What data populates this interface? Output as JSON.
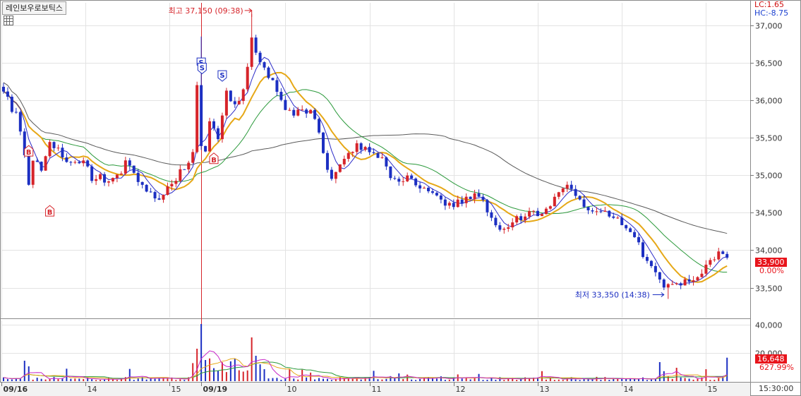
{
  "header": {
    "instrument": "레인보우로보틱스",
    "lc_label": "LC:1.65",
    "hc_label": "HC:-8.75"
  },
  "price_tag": {
    "value": "33,900",
    "change": "0.00%"
  },
  "volume_tag": {
    "value": "16,648",
    "change": "627.99%"
  },
  "footer": {
    "time": "15:30:00"
  },
  "annotations": {
    "high": "최고 37,150 (09:38)",
    "low": "최저 33,350 (14:38)",
    "signals": [
      "B",
      "B",
      "B",
      "S",
      "S",
      "S"
    ]
  },
  "colors": {
    "up": "#d6242a",
    "down": "#1c2fc2",
    "ma5": "#2c2cc8",
    "ma10": "#e6a817",
    "ma20": "#2c9a3c",
    "ma60": "#5a5a5a",
    "vol_ma5": "#c828c8",
    "vol_ma10": "#e6a817",
    "vol_ma20": "#2c9a3c",
    "tag": "#e8141b"
  },
  "chart_data": {
    "type": "candlestick",
    "price_axis": {
      "ticks": [
        33500,
        34000,
        34500,
        35000,
        35500,
        36000,
        36500,
        37000
      ],
      "tick_labels": [
        "33,500",
        "34,000",
        "34,500",
        "35,000",
        "35,500",
        "36,000",
        "36,500",
        "37,000"
      ],
      "range": [
        33100,
        37300
      ]
    },
    "volume_axis": {
      "ticks": [
        20000,
        40000
      ],
      "tick_labels": [
        "20,000",
        "40,000"
      ],
      "range": [
        0,
        43000
      ]
    },
    "time_axis": {
      "labels": [
        "09/16",
        "14",
        "15",
        "09/19",
        "10",
        "11",
        "12",
        "13",
        "14",
        "15"
      ],
      "bold": [
        true,
        false,
        false,
        true,
        false,
        false,
        false,
        false,
        false,
        false
      ],
      "positions": [
        0,
        20,
        40,
        47.5,
        67.5,
        87.5,
        107.5,
        127.5,
        147.5,
        167.5
      ],
      "minutes_per_bar": 3,
      "bar_count": 173
    },
    "price_path": [
      [
        0,
        36100
      ],
      [
        3,
        35800
      ],
      [
        5,
        35300
      ],
      [
        6,
        34900
      ],
      [
        7,
        35200
      ],
      [
        9,
        35100
      ],
      [
        11,
        35400
      ],
      [
        13,
        35350
      ],
      [
        15,
        35200
      ],
      [
        17,
        35150
      ],
      [
        19,
        35250
      ],
      [
        21,
        34950
      ],
      [
        23,
        35000
      ],
      [
        25,
        34900
      ],
      [
        27,
        35000
      ],
      [
        29,
        35150
      ],
      [
        31,
        35000
      ],
      [
        33,
        34850
      ],
      [
        35,
        34800
      ],
      [
        37,
        34650
      ],
      [
        39,
        34900
      ],
      [
        41,
        34950
      ],
      [
        43,
        35100
      ],
      [
        45,
        35300
      ],
      [
        46,
        36200
      ],
      [
        47,
        35400
      ],
      [
        48,
        35300
      ],
      [
        49,
        35700
      ],
      [
        51,
        35500
      ],
      [
        53,
        36100
      ],
      [
        55,
        35950
      ],
      [
        57,
        36100
      ],
      [
        59,
        36800
      ],
      [
        61,
        36500
      ],
      [
        63,
        36300
      ],
      [
        65,
        36150
      ],
      [
        67,
        35900
      ],
      [
        69,
        35750
      ],
      [
        71,
        35900
      ],
      [
        73,
        35850
      ],
      [
        75,
        35600
      ],
      [
        77,
        35100
      ],
      [
        78,
        34950
      ],
      [
        80,
        35150
      ],
      [
        82,
        35300
      ],
      [
        84,
        35400
      ],
      [
        86,
        35350
      ],
      [
        88,
        35300
      ],
      [
        90,
        35250
      ],
      [
        92,
        35000
      ],
      [
        94,
        34900
      ],
      [
        96,
        34950
      ],
      [
        98,
        34900
      ],
      [
        100,
        34850
      ],
      [
        102,
        34800
      ],
      [
        104,
        34650
      ],
      [
        106,
        34600
      ],
      [
        108,
        34650
      ],
      [
        110,
        34700
      ],
      [
        112,
        34750
      ],
      [
        114,
        34650
      ],
      [
        116,
        34400
      ],
      [
        118,
        34300
      ],
      [
        120,
        34250
      ],
      [
        122,
        34400
      ],
      [
        124,
        34500
      ],
      [
        126,
        34550
      ],
      [
        128,
        34450
      ],
      [
        130,
        34600
      ],
      [
        132,
        34800
      ],
      [
        134,
        34900
      ],
      [
        136,
        34700
      ],
      [
        138,
        34550
      ],
      [
        140,
        34550
      ],
      [
        142,
        34500
      ],
      [
        144,
        34450
      ],
      [
        146,
        34400
      ],
      [
        148,
        34300
      ],
      [
        150,
        34150
      ],
      [
        152,
        33950
      ],
      [
        154,
        33800
      ],
      [
        156,
        33600
      ],
      [
        158,
        33500
      ],
      [
        160,
        33550
      ],
      [
        162,
        33600
      ],
      [
        164,
        33550
      ],
      [
        166,
        33700
      ],
      [
        168,
        33850
      ],
      [
        170,
        33950
      ],
      [
        172,
        33900
      ]
    ],
    "high": {
      "price": 37150,
      "time": "09:38"
    },
    "low": {
      "price": 33350,
      "time": "14:38"
    },
    "last_price": 33900,
    "last_volume": 16648
  }
}
